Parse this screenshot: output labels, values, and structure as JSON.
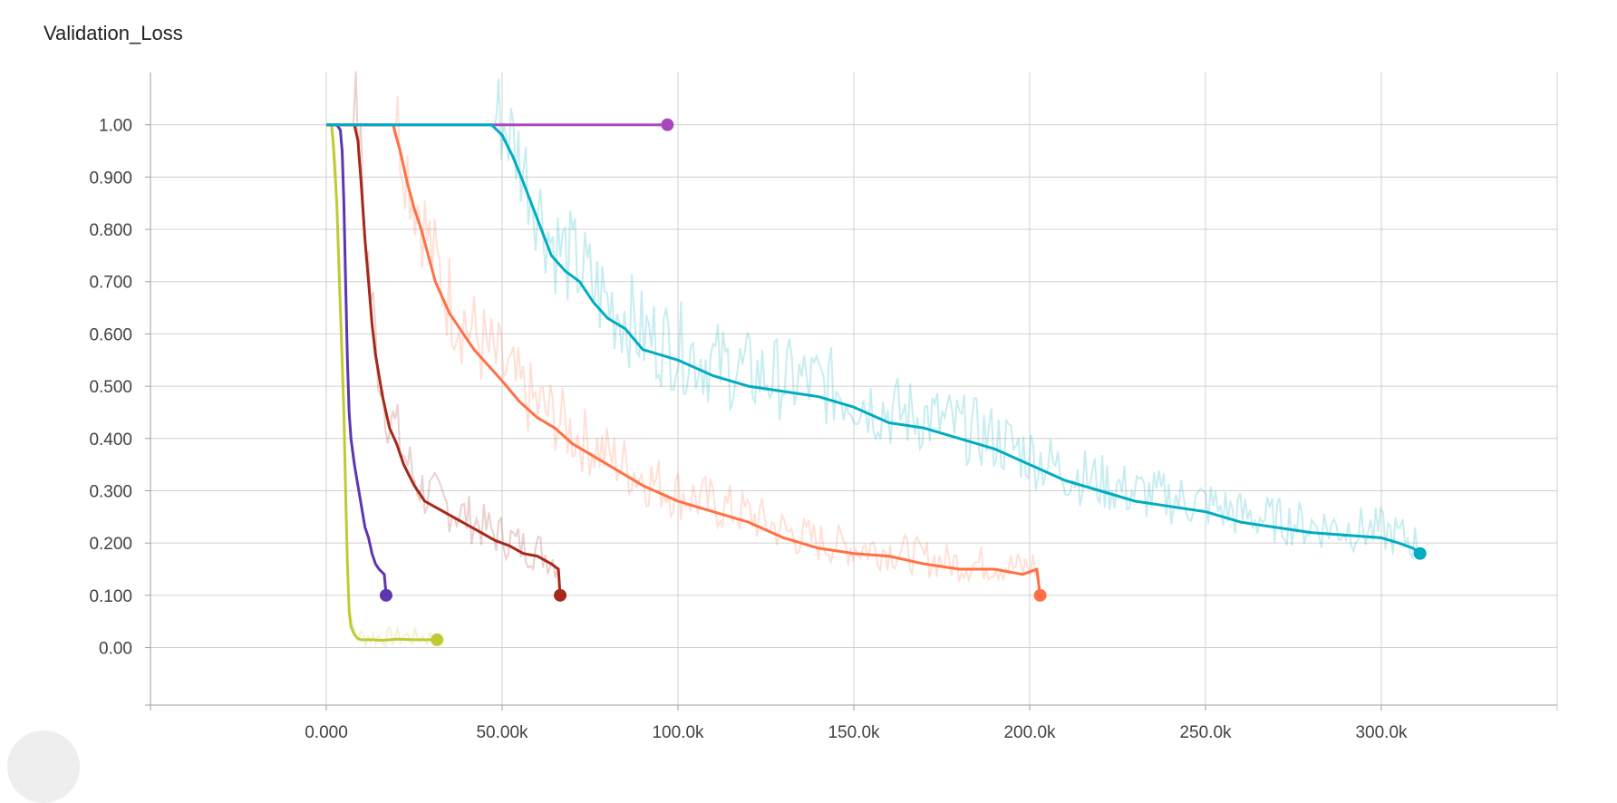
{
  "chart_data": {
    "type": "line",
    "title": "Validation_Loss",
    "xlabel": "",
    "ylabel": "",
    "xlim": [
      -50000,
      350000
    ],
    "ylim": [
      -0.11,
      1.1
    ],
    "x_ticks": [
      0,
      50000,
      100000,
      150000,
      200000,
      250000,
      300000
    ],
    "x_tick_labels": [
      "0.000",
      "50.00k",
      "100.0k",
      "150.0k",
      "200.0k",
      "250.0k",
      "300.0k"
    ],
    "y_ticks": [
      1.0,
      0.9,
      0.8,
      0.7,
      0.6,
      0.5,
      0.4,
      0.3,
      0.2,
      0.1,
      0.0
    ],
    "y_tick_labels": [
      "1.00",
      "0.900",
      "0.800",
      "0.700",
      "0.600",
      "0.500",
      "0.400",
      "0.300",
      "0.200",
      "0.100",
      "0.00"
    ],
    "grid": true,
    "legend": "none",
    "series": [
      {
        "color": "#c0ca33",
        "values": [
          [
            0,
            1.0
          ],
          [
            1500,
            1.0
          ],
          [
            2000,
            0.96
          ],
          [
            3000,
            0.85
          ],
          [
            4000,
            0.65
          ],
          [
            5000,
            0.45
          ],
          [
            5500,
            0.3
          ],
          [
            6000,
            0.16
          ],
          [
            6500,
            0.07
          ],
          [
            7000,
            0.04
          ],
          [
            8000,
            0.025
          ],
          [
            9000,
            0.017
          ],
          [
            10000,
            0.015
          ],
          [
            13000,
            0.015
          ],
          [
            16000,
            0.014
          ],
          [
            20000,
            0.016
          ],
          [
            25000,
            0.015
          ],
          [
            31500,
            0.015
          ]
        ],
        "end": [
          31500,
          0.015
        ]
      },
      {
        "color": "#5e35b1",
        "values": [
          [
            0,
            1.0
          ],
          [
            3000,
            1.0
          ],
          [
            4000,
            0.99
          ],
          [
            4500,
            0.95
          ],
          [
            5000,
            0.85
          ],
          [
            5500,
            0.7
          ],
          [
            6000,
            0.55
          ],
          [
            6500,
            0.45
          ],
          [
            7000,
            0.4
          ],
          [
            8000,
            0.35
          ],
          [
            9000,
            0.31
          ],
          [
            10000,
            0.27
          ],
          [
            11000,
            0.23
          ],
          [
            12000,
            0.21
          ],
          [
            13000,
            0.18
          ],
          [
            14000,
            0.16
          ],
          [
            15000,
            0.15
          ],
          [
            16500,
            0.14
          ],
          [
            17000,
            0.1
          ]
        ],
        "end": [
          17000,
          0.1
        ]
      },
      {
        "color": "#a5281b",
        "values": [
          [
            0,
            1.0
          ],
          [
            8000,
            1.0
          ],
          [
            9000,
            0.97
          ],
          [
            10000,
            0.88
          ],
          [
            11000,
            0.78
          ],
          [
            12000,
            0.7
          ],
          [
            13000,
            0.62
          ],
          [
            14000,
            0.56
          ],
          [
            16000,
            0.48
          ],
          [
            18000,
            0.42
          ],
          [
            20000,
            0.39
          ],
          [
            22000,
            0.35
          ],
          [
            25000,
            0.31
          ],
          [
            28000,
            0.28
          ],
          [
            32000,
            0.265
          ],
          [
            36000,
            0.25
          ],
          [
            40000,
            0.235
          ],
          [
            44000,
            0.22
          ],
          [
            48000,
            0.205
          ],
          [
            52000,
            0.195
          ],
          [
            56000,
            0.18
          ],
          [
            60000,
            0.175
          ],
          [
            64000,
            0.16
          ],
          [
            66000,
            0.15
          ],
          [
            66500,
            0.1
          ]
        ],
        "end": [
          66500,
          0.1
        ]
      },
      {
        "color": "#ff7043",
        "values": [
          [
            0,
            1.0
          ],
          [
            19000,
            1.0
          ],
          [
            21000,
            0.95
          ],
          [
            23000,
            0.89
          ],
          [
            25000,
            0.84
          ],
          [
            27000,
            0.8
          ],
          [
            29000,
            0.75
          ],
          [
            31000,
            0.7
          ],
          [
            33000,
            0.67
          ],
          [
            35000,
            0.64
          ],
          [
            38000,
            0.61
          ],
          [
            42000,
            0.57
          ],
          [
            46000,
            0.54
          ],
          [
            50000,
            0.51
          ],
          [
            55000,
            0.47
          ],
          [
            60000,
            0.44
          ],
          [
            65000,
            0.42
          ],
          [
            70000,
            0.39
          ],
          [
            75000,
            0.37
          ],
          [
            80000,
            0.35
          ],
          [
            90000,
            0.31
          ],
          [
            100000,
            0.28
          ],
          [
            110000,
            0.26
          ],
          [
            120000,
            0.24
          ],
          [
            130000,
            0.21
          ],
          [
            140000,
            0.19
          ],
          [
            150000,
            0.18
          ],
          [
            160000,
            0.175
          ],
          [
            170000,
            0.16
          ],
          [
            180000,
            0.15
          ],
          [
            190000,
            0.15
          ],
          [
            198000,
            0.14
          ],
          [
            202000,
            0.15
          ],
          [
            203000,
            0.1
          ]
        ],
        "end": [
          203000,
          0.1
        ]
      },
      {
        "color": "#ab47bc",
        "values": [
          [
            0,
            1.0
          ],
          [
            97000,
            1.0
          ]
        ],
        "end": [
          97000,
          1.0
        ]
      },
      {
        "color": "#00acc1",
        "values": [
          [
            0,
            1.0
          ],
          [
            47000,
            1.0
          ],
          [
            50000,
            0.98
          ],
          [
            53000,
            0.94
          ],
          [
            56000,
            0.89
          ],
          [
            60000,
            0.82
          ],
          [
            64000,
            0.75
          ],
          [
            68000,
            0.72
          ],
          [
            72000,
            0.7
          ],
          [
            76000,
            0.66
          ],
          [
            80000,
            0.63
          ],
          [
            85000,
            0.61
          ],
          [
            90000,
            0.57
          ],
          [
            95000,
            0.56
          ],
          [
            100000,
            0.55
          ],
          [
            110000,
            0.52
          ],
          [
            120000,
            0.5
          ],
          [
            130000,
            0.49
          ],
          [
            140000,
            0.48
          ],
          [
            150000,
            0.46
          ],
          [
            160000,
            0.43
          ],
          [
            170000,
            0.42
          ],
          [
            180000,
            0.4
          ],
          [
            190000,
            0.38
          ],
          [
            200000,
            0.35
          ],
          [
            210000,
            0.32
          ],
          [
            220000,
            0.3
          ],
          [
            230000,
            0.28
          ],
          [
            240000,
            0.27
          ],
          [
            250000,
            0.26
          ],
          [
            260000,
            0.24
          ],
          [
            270000,
            0.23
          ],
          [
            280000,
            0.22
          ],
          [
            290000,
            0.215
          ],
          [
            300000,
            0.21
          ],
          [
            305000,
            0.2
          ],
          [
            309000,
            0.19
          ],
          [
            311000,
            0.18
          ]
        ],
        "end": [
          311000,
          0.18
        ]
      }
    ]
  }
}
